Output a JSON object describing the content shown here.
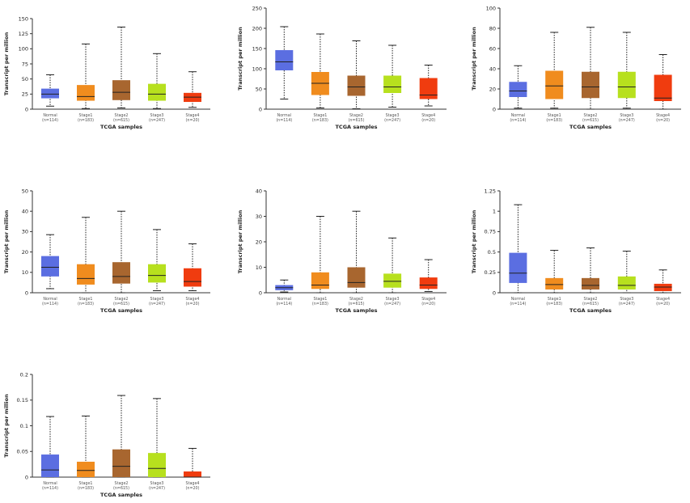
{
  "colors": {
    "normal": "#5b6ee1",
    "stage1": "#f08c1e",
    "stage2": "#a8662f",
    "stage3": "#b7e01e",
    "stage4": "#f03c0f"
  },
  "chart_data": [
    {
      "type": "box",
      "categories": [
        "Normal",
        "Stage1",
        "Stage2",
        "Stage3",
        "Stage4"
      ],
      "counts": [
        "(n=114)",
        "(n=183)",
        "(n=615)",
        "(n=247)",
        "(n=20)"
      ],
      "xlabel": "TCGA samples",
      "ylabel": "Transcript per million",
      "ylim": [
        0,
        150
      ],
      "yticks": [
        0,
        25,
        50,
        75,
        100,
        125,
        150
      ],
      "ytick_labels": [
        "0",
        "25",
        "50",
        "75",
        "100",
        "125",
        "150"
      ],
      "boxes": [
        {
          "min": 5,
          "q1": 18,
          "median": 25,
          "q3": 34,
          "max": 57
        },
        {
          "min": 1,
          "q1": 14,
          "median": 21,
          "q3": 40,
          "max": 108
        },
        {
          "min": 2,
          "q1": 15,
          "median": 28,
          "q3": 48,
          "max": 136
        },
        {
          "min": 1,
          "q1": 14,
          "median": 25,
          "q3": 42,
          "max": 92
        },
        {
          "min": 3,
          "q1": 12,
          "median": 20,
          "q3": 27,
          "max": 62
        }
      ]
    },
    {
      "type": "box",
      "categories": [
        "Normal",
        "Stage1",
        "Stage2",
        "Stage3",
        "Stage4"
      ],
      "counts": [
        "(n=114)",
        "(n=183)",
        "(n=615)",
        "(n=247)",
        "(n=20)"
      ],
      "xlabel": "TCGA samples",
      "ylabel": "Transcript per million",
      "ylim": [
        0,
        250
      ],
      "yticks": [
        0,
        50,
        100,
        150,
        200,
        250
      ],
      "ytick_labels": [
        "0",
        "50",
        "100",
        "150",
        "200",
        "250"
      ],
      "boxes": [
        {
          "min": 25,
          "q1": 96,
          "median": 117,
          "q3": 146,
          "max": 204
        },
        {
          "min": 3,
          "q1": 35,
          "median": 64,
          "q3": 92,
          "max": 186
        },
        {
          "min": 1,
          "q1": 33,
          "median": 55,
          "q3": 83,
          "max": 169
        },
        {
          "min": 5,
          "q1": 40,
          "median": 55,
          "q3": 83,
          "max": 158
        },
        {
          "min": 8,
          "q1": 25,
          "median": 35,
          "q3": 77,
          "max": 109
        }
      ]
    },
    {
      "type": "box",
      "categories": [
        "Normal",
        "Stage1",
        "Stage2",
        "Stage3",
        "Stage4"
      ],
      "counts": [
        "(n=114)",
        "(n=183)",
        "(n=615)",
        "(n=247)",
        "(n=20)"
      ],
      "xlabel": "TCGA samples",
      "ylabel": "Transcript per million",
      "ylim": [
        0,
        100
      ],
      "yticks": [
        0,
        20,
        40,
        60,
        80,
        100
      ],
      "ytick_labels": [
        "0",
        "20",
        "40",
        "60",
        "80",
        "100"
      ],
      "boxes": [
        {
          "min": 1,
          "q1": 12,
          "median": 18,
          "q3": 27,
          "max": 43
        },
        {
          "min": 1,
          "q1": 10,
          "median": 23,
          "q3": 38,
          "max": 76
        },
        {
          "min": 0,
          "q1": 11,
          "median": 22,
          "q3": 37,
          "max": 81
        },
        {
          "min": 1,
          "q1": 11,
          "median": 22,
          "q3": 37,
          "max": 76
        },
        {
          "min": 0,
          "q1": 8,
          "median": 11,
          "q3": 34,
          "max": 54
        }
      ]
    },
    {
      "type": "box",
      "categories": [
        "Normal",
        "Stage1",
        "Stage2",
        "Stage3",
        "Stage4"
      ],
      "counts": [
        "(n=114)",
        "(n=183)",
        "(n=615)",
        "(n=247)",
        "(n=20)"
      ],
      "xlabel": "TCGA samples",
      "ylabel": "Transcript per million",
      "ylim": [
        0,
        50
      ],
      "yticks": [
        0,
        10,
        20,
        30,
        40,
        50
      ],
      "ytick_labels": [
        "0",
        "10",
        "20",
        "30",
        "40",
        "50"
      ],
      "boxes": [
        {
          "min": 2,
          "q1": 8,
          "median": 12.5,
          "q3": 18,
          "max": 28.5
        },
        {
          "min": 0,
          "q1": 4,
          "median": 7,
          "q3": 14,
          "max": 37
        },
        {
          "min": 0,
          "q1": 4.5,
          "median": 8,
          "q3": 15,
          "max": 40
        },
        {
          "min": 1,
          "q1": 5,
          "median": 8.5,
          "q3": 14,
          "max": 31
        },
        {
          "min": 1,
          "q1": 3,
          "median": 5.5,
          "q3": 12,
          "max": 24
        }
      ]
    },
    {
      "type": "box",
      "categories": [
        "Normal",
        "Stage1",
        "Stage2",
        "Stage3",
        "Stage4"
      ],
      "counts": [
        "(n=114)",
        "(n=183)",
        "(n=615)",
        "(n=247)",
        "(n=20)"
      ],
      "xlabel": "TCGA samples",
      "ylabel": "Transcript per million",
      "ylim": [
        0,
        40
      ],
      "yticks": [
        0,
        10,
        20,
        30,
        40
      ],
      "ytick_labels": [
        "0",
        "10",
        "20",
        "30",
        "40"
      ],
      "boxes": [
        {
          "min": 0.3,
          "q1": 1,
          "median": 2,
          "q3": 3,
          "max": 5
        },
        {
          "min": 0,
          "q1": 1.5,
          "median": 3,
          "q3": 8,
          "max": 30
        },
        {
          "min": 0,
          "q1": 2,
          "median": 4,
          "q3": 10,
          "max": 32
        },
        {
          "min": 0,
          "q1": 2,
          "median": 4.5,
          "q3": 7.5,
          "max": 21.5
        },
        {
          "min": 0.5,
          "q1": 1.5,
          "median": 3,
          "q3": 6,
          "max": 13
        }
      ]
    },
    {
      "type": "box",
      "categories": [
        "Normal",
        "Stage1",
        "Stage2",
        "Stage3",
        "Stage4"
      ],
      "counts": [
        "(n=114)",
        "(n=183)",
        "(n=615)",
        "(n=247)",
        "(n=20)"
      ],
      "xlabel": "TCGA samples",
      "ylabel": "Transcript per million",
      "ylim": [
        0,
        1.25
      ],
      "yticks": [
        0,
        0.25,
        0.5,
        0.75,
        1,
        1.25
      ],
      "ytick_labels": [
        "0",
        "0.25",
        "0.5",
        "0.75",
        "1",
        "1.25"
      ],
      "boxes": [
        {
          "min": 0,
          "q1": 0.12,
          "median": 0.24,
          "q3": 0.49,
          "max": 1.08
        },
        {
          "min": 0,
          "q1": 0.04,
          "median": 0.1,
          "q3": 0.18,
          "max": 0.52
        },
        {
          "min": 0,
          "q1": 0.04,
          "median": 0.09,
          "q3": 0.18,
          "max": 0.55
        },
        {
          "min": 0,
          "q1": 0.04,
          "median": 0.09,
          "q3": 0.2,
          "max": 0.51
        },
        {
          "min": 0,
          "q1": 0.02,
          "median": 0.07,
          "q3": 0.11,
          "max": 0.28
        }
      ]
    },
    {
      "type": "box",
      "categories": [
        "Normal",
        "Stage1",
        "Stage2",
        "Stage3",
        "Stage4"
      ],
      "counts": [
        "(n=114)",
        "(n=183)",
        "(n=615)",
        "(n=247)",
        "(n=20)"
      ],
      "xlabel": "TCGA samples",
      "ylabel": "Transcript per million",
      "ylim": [
        0,
        0.2
      ],
      "yticks": [
        0,
        0.05,
        0.1,
        0.15,
        0.2
      ],
      "ytick_labels": [
        "0",
        "0.05",
        "0.1",
        "0.15",
        "0.2"
      ],
      "boxes": [
        {
          "min": 0,
          "q1": 0,
          "median": 0.014,
          "q3": 0.044,
          "max": 0.118
        },
        {
          "min": 0,
          "q1": 0,
          "median": 0.013,
          "q3": 0.03,
          "max": 0.119
        },
        {
          "min": 0,
          "q1": 0,
          "median": 0.021,
          "q3": 0.054,
          "max": 0.159
        },
        {
          "min": 0,
          "q1": 0,
          "median": 0.017,
          "q3": 0.047,
          "max": 0.153
        },
        {
          "min": 0,
          "q1": 0,
          "median": 0,
          "q3": 0.011,
          "max": 0.056
        }
      ]
    }
  ]
}
